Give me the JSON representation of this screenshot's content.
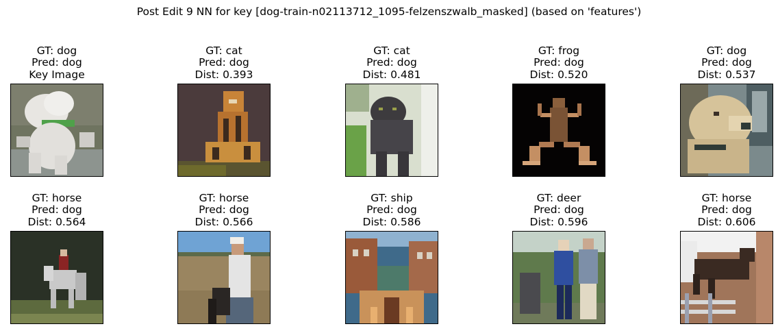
{
  "figure": {
    "title": "Post Edit 9 NN for key [dog-train-n02113712_1095-felzenszwalb_masked] (based on 'features')"
  },
  "panels": [
    {
      "gt": "GT: dog",
      "pred": "Pred: dog",
      "extra": "Key Image",
      "subject": "white-poodle",
      "colors": {
        "bg": "#6f7460",
        "fg": "#e8e6e2",
        "accent": "#4fa14a"
      }
    },
    {
      "gt": "GT: cat",
      "pred": "Pred: dog",
      "extra": "Dist: 0.393",
      "subject": "tiger",
      "colors": {
        "bg": "#4b3b3c",
        "fg": "#c88438",
        "accent": "#3b2a1e"
      }
    },
    {
      "gt": "GT: cat",
      "pred": "Pred: dog",
      "extra": "Dist: 0.481",
      "subject": "black-cat",
      "colors": {
        "bg": "#d9dfcf",
        "fg": "#3d3b3e",
        "accent": "#6aa248"
      }
    },
    {
      "gt": "GT: frog",
      "pred": "Pred: dog",
      "extra": "Dist: 0.520",
      "subject": "frog",
      "colors": {
        "bg": "#050303",
        "fg": "#8a5f3c",
        "accent": "#c48f63"
      }
    },
    {
      "gt": "GT: dog",
      "pred": "Pred: dog",
      "extra": "Dist: 0.537",
      "subject": "golden-dog",
      "colors": {
        "bg": "#7b8a8c",
        "fg": "#d6c39a",
        "accent": "#2f3a36"
      }
    },
    {
      "gt": "GT: horse",
      "pred": "Pred: dog",
      "extra": "Dist: 0.564",
      "subject": "white-horse",
      "colors": {
        "bg": "#2a3126",
        "fg": "#c9c9c9",
        "accent": "#8a2424"
      }
    },
    {
      "gt": "GT: horse",
      "pred": "Pred: dog",
      "extra": "Dist: 0.566",
      "subject": "rider-field",
      "colors": {
        "bg": "#8e7a56",
        "fg": "#6fa3d4",
        "accent": "#e4e4e4"
      }
    },
    {
      "gt": "GT: ship",
      "pred": "Pred: dog",
      "extra": "Dist: 0.586",
      "subject": "canal-boat",
      "colors": {
        "bg": "#3f6a8a",
        "fg": "#9a5a3a",
        "accent": "#c9925a"
      }
    },
    {
      "gt": "GT: deer",
      "pred": "Pred: dog",
      "extra": "Dist: 0.596",
      "subject": "two-people",
      "colors": {
        "bg": "#5f7a4c",
        "fg": "#2f4fa0",
        "accent": "#e1d9c4"
      }
    },
    {
      "gt": "GT: horse",
      "pred": "Pred: dog",
      "extra": "Dist: 0.606",
      "subject": "jumping-horse",
      "colors": {
        "bg": "#a0755a",
        "fg": "#3a2a22",
        "accent": "#d8d8d8"
      }
    }
  ]
}
